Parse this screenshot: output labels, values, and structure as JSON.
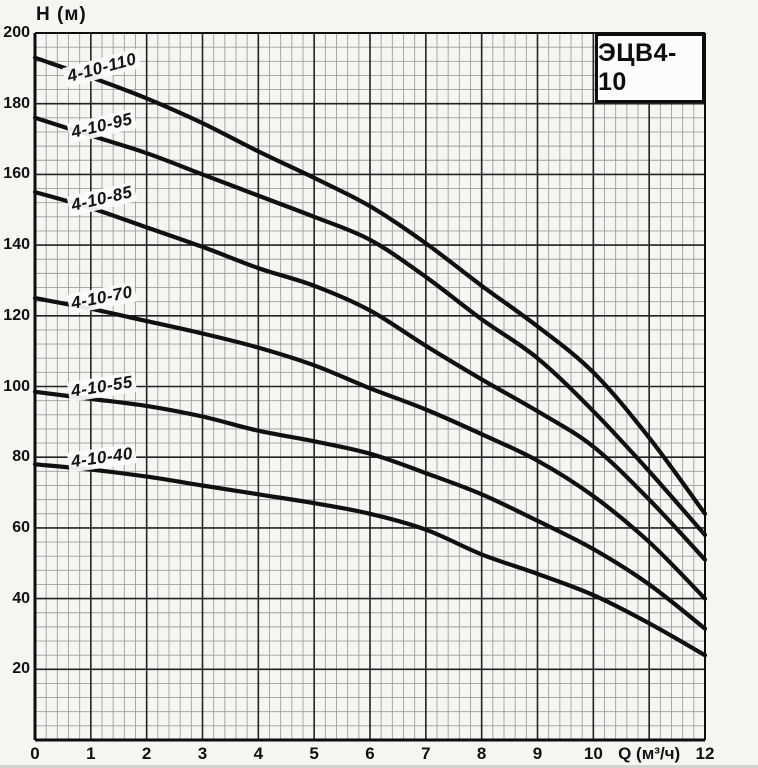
{
  "page": {
    "background": "#f6f5f2"
  },
  "title_box": {
    "text": "ЭЦВ4-10"
  },
  "axes": {
    "y_label": "H (м)",
    "x_label": "Q (м³/ч)",
    "y_ticks": [
      200,
      180,
      160,
      140,
      120,
      100,
      80,
      60,
      40,
      20
    ],
    "x_ticks": [
      {
        "q": 0,
        "text": "0"
      },
      {
        "q": 1,
        "text": "1"
      },
      {
        "q": 2,
        "text": "2"
      },
      {
        "q": 3,
        "text": "3"
      },
      {
        "q": 4,
        "text": "4"
      },
      {
        "q": 5,
        "text": "5"
      },
      {
        "q": 6,
        "text": "6"
      },
      {
        "q": 7,
        "text": "7"
      },
      {
        "q": 8,
        "text": "8"
      },
      {
        "q": 9,
        "text": "9"
      },
      {
        "q": 10,
        "text": "10"
      },
      {
        "q": 11,
        "text": "Q (м³/ч)"
      },
      {
        "q": 12,
        "text": "12"
      }
    ]
  },
  "chart_data": {
    "type": "line",
    "title": "ЭЦВ4-10",
    "xlabel": "Q (м³/ч)",
    "ylabel": "H (м)",
    "xlim": [
      0,
      12
    ],
    "ylim": [
      0,
      200
    ],
    "x_major_step": 1,
    "y_major_step": 20,
    "minor_subdivisions": 5,
    "grid": "major+minor",
    "legend_position": "labels-on-curves",
    "x": [
      0,
      1,
      2,
      3,
      4,
      5,
      6,
      7,
      8,
      9,
      10,
      11,
      12
    ],
    "series": [
      {
        "name": "4-10-110",
        "values": [
          193,
          187.5,
          181.5,
          174.5,
          166.5,
          159,
          151,
          140.5,
          128.5,
          117,
          104,
          85.5,
          64
        ],
        "label_rotation_deg": -15
      },
      {
        "name": "4-10-95",
        "values": [
          176,
          171,
          166,
          160,
          154,
          148,
          141.5,
          131,
          119,
          108,
          93,
          76,
          58
        ],
        "label_rotation_deg": -13
      },
      {
        "name": "4-10-85",
        "values": [
          155,
          150.5,
          145,
          139.5,
          133.5,
          128.5,
          121.5,
          111.5,
          102,
          93,
          83,
          68,
          51
        ],
        "label_rotation_deg": -13
      },
      {
        "name": "4-10-70",
        "values": [
          125,
          122,
          118.5,
          115,
          111,
          106,
          99.5,
          93.5,
          86.5,
          79,
          69,
          56,
          40
        ],
        "label_rotation_deg": -11
      },
      {
        "name": "4-10-55",
        "values": [
          98.5,
          96.5,
          94.5,
          91.5,
          87.5,
          84.5,
          81,
          75.5,
          69.5,
          62,
          54,
          44,
          31.5
        ],
        "label_rotation_deg": -9
      },
      {
        "name": "4-10-40",
        "values": [
          78,
          76.5,
          74.5,
          72,
          69.5,
          67,
          64,
          59.5,
          52.5,
          47,
          41,
          33,
          24
        ],
        "label_rotation_deg": -8
      }
    ],
    "colors": {
      "curve": "#101010",
      "grid_major": "#222222",
      "grid_minor": "#9e9e9e",
      "axis": "#0d0d0d"
    }
  }
}
